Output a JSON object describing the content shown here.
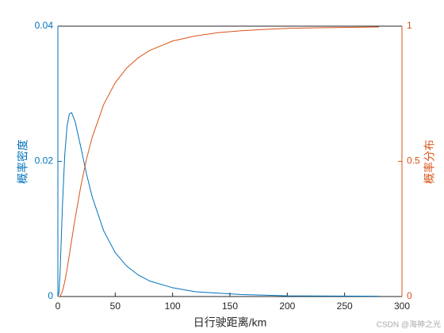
{
  "chart_data": {
    "type": "line",
    "xlabel": "日行驶距离/km",
    "ylabel": "概率密度",
    "y2label": "概率分布",
    "watermark": "CSDN @海神之光",
    "x": [
      0,
      1,
      2,
      4,
      6,
      8,
      10,
      12,
      15,
      20,
      25,
      30,
      40,
      50,
      60,
      70,
      80,
      100,
      120,
      140,
      160,
      180,
      200,
      240,
      280
    ],
    "series": [
      {
        "name": "概率密度",
        "color": "#0072bd",
        "axis": "y",
        "values": [
          0,
          0.0006,
          0.0039,
          0.0135,
          0.021,
          0.0252,
          0.027,
          0.0272,
          0.0259,
          0.0221,
          0.0181,
          0.0147,
          0.0097,
          0.0065,
          0.0045,
          0.0032,
          0.0023,
          0.0013,
          0.0007,
          0.0005,
          0.0003,
          0.0002,
          0.0001,
          7e-05,
          4e-05
        ]
      },
      {
        "name": "概率分布",
        "color": "#d95319",
        "axis": "y2",
        "values": [
          0,
          0.0001,
          0.002,
          0.02,
          0.055,
          0.101,
          0.154,
          0.208,
          0.288,
          0.408,
          0.509,
          0.59,
          0.711,
          0.791,
          0.845,
          0.883,
          0.91,
          0.945,
          0.964,
          0.976,
          0.983,
          0.988,
          0.992,
          0.995,
          0.997
        ]
      }
    ],
    "xlim": [
      0,
      300
    ],
    "xticks": [
      0,
      50,
      100,
      150,
      200,
      250,
      300
    ],
    "ylim": [
      0,
      0.04
    ],
    "yticks": [
      0,
      0.02,
      0.04
    ],
    "y2lim": [
      0,
      1
    ],
    "y2ticks": [
      0,
      0.5,
      1
    ]
  }
}
